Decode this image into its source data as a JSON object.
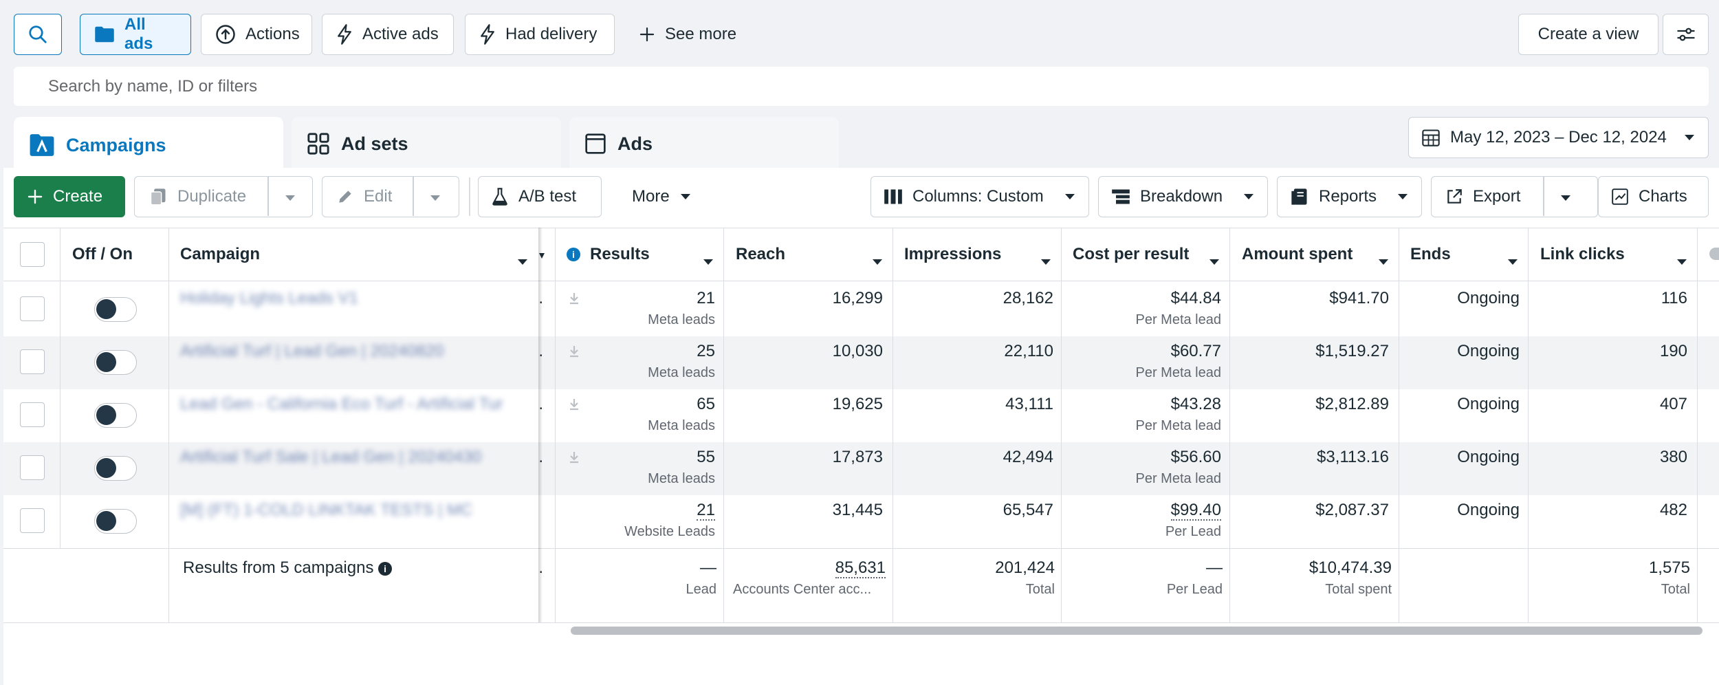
{
  "filters": {
    "search_icon": "search-icon",
    "all_ads": "All ads",
    "actions": "Actions",
    "active_ads": "Active ads",
    "had_delivery": "Had delivery",
    "see_more": "See more",
    "create_view": "Create a view"
  },
  "search": {
    "placeholder": "Search by name, ID or filters"
  },
  "tabs": [
    {
      "label": "Campaigns"
    },
    {
      "label": "Ad sets"
    },
    {
      "label": "Ads"
    }
  ],
  "date_range": "May 12, 2023 – Dec 12, 2024",
  "toolbar": {
    "create": "Create",
    "duplicate": "Duplicate",
    "edit": "Edit",
    "ab_test": "A/B test",
    "more": "More",
    "columns": "Columns: Custom",
    "breakdown": "Breakdown",
    "reports": "Reports",
    "export": "Export",
    "charts": "Charts"
  },
  "columns": {
    "off_on": "Off / On",
    "campaign": "Campaign",
    "results": "Results",
    "reach": "Reach",
    "impressions": "Impressions",
    "cost_per_result": "Cost per result",
    "amount_spent": "Amount spent",
    "ends": "Ends",
    "link_clicks": "Link clicks"
  },
  "rows": [
    {
      "campaign": "Holiday Lights Leads V1",
      "results": "21",
      "results_sub": "Meta leads",
      "reach": "16,299",
      "impressions": "28,162",
      "cpr": "$44.84",
      "cpr_sub": "Per Meta lead",
      "spent": "$941.70",
      "ends": "Ongoing",
      "clicks": "116"
    },
    {
      "campaign": "Artificial Turf | Lead Gen | 20240820",
      "results": "25",
      "results_sub": "Meta leads",
      "reach": "10,030",
      "impressions": "22,110",
      "cpr": "$60.77",
      "cpr_sub": "Per Meta lead",
      "spent": "$1,519.27",
      "ends": "Ongoing",
      "clicks": "190"
    },
    {
      "campaign": "Lead Gen - California Eco Turf - Artificial Tur",
      "results": "65",
      "results_sub": "Meta leads",
      "reach": "19,625",
      "impressions": "43,111",
      "cpr": "$43.28",
      "cpr_sub": "Per Meta lead",
      "spent": "$2,812.89",
      "ends": "Ongoing",
      "clicks": "407"
    },
    {
      "campaign": "Artificial Turf Sale | Lead Gen | 20240430",
      "results": "55",
      "results_sub": "Meta leads",
      "reach": "17,873",
      "impressions": "42,494",
      "cpr": "$56.60",
      "cpr_sub": "Per Meta lead",
      "spent": "$3,113.16",
      "ends": "Ongoing",
      "clicks": "380"
    },
    {
      "campaign": "[M] (FT) 1-COLD LINKTAK TESTS | MC",
      "results": "21",
      "results_sub": "Website Leads",
      "reach": "31,445",
      "impressions": "65,547",
      "cpr": "$99.40",
      "cpr_sub": "Per Lead",
      "spent": "$2,087.37",
      "ends": "Ongoing",
      "clicks": "482"
    }
  ],
  "totals": {
    "label": "Results from 5 campaigns",
    "results": "—",
    "results_sub": "Lead",
    "reach": "85,631",
    "reach_sub": "Accounts Center acc...",
    "impressions": "201,424",
    "impressions_sub": "Total",
    "cpr": "—",
    "cpr_sub": "Per Lead",
    "spent": "$10,474.39",
    "spent_sub": "Total spent",
    "clicks": "1,575",
    "clicks_sub": "Total"
  },
  "colors": {
    "accent": "#0a78be",
    "create_green": "#1a7f4b",
    "toggle_knob": "#243746"
  }
}
